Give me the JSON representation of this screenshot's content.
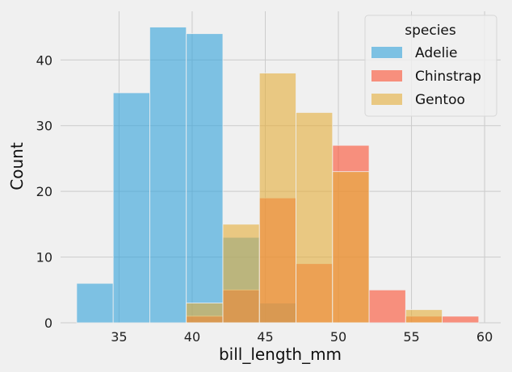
{
  "chart_data": {
    "type": "bar",
    "xlabel": "bill_length_mm",
    "ylabel": "Count",
    "xlim": [
      31.0,
      61.1
    ],
    "ylim": [
      0,
      47.4
    ],
    "x_ticks": [
      35,
      40,
      45,
      50,
      55,
      60
    ],
    "y_ticks": [
      0,
      10,
      20,
      30,
      40
    ],
    "grid": true,
    "bins": [
      [
        32.1,
        34.6
      ],
      [
        34.6,
        37.1
      ],
      [
        37.1,
        39.6
      ],
      [
        39.6,
        42.1
      ],
      [
        42.1,
        44.6
      ],
      [
        44.6,
        47.1
      ],
      [
        47.1,
        49.6
      ],
      [
        49.6,
        52.1
      ],
      [
        52.1,
        54.6
      ],
      [
        54.6,
        57.1
      ],
      [
        57.1,
        59.6
      ]
    ],
    "legend": {
      "title": "species",
      "position": "top-right"
    },
    "series": [
      {
        "name": "Adelie",
        "color": "#30a2da",
        "values": [
          6,
          35,
          45,
          44,
          13,
          3,
          0,
          0,
          0,
          0,
          0
        ]
      },
      {
        "name": "Chinstrap",
        "color": "#fc4f30",
        "values": [
          0,
          0,
          0,
          1,
          5,
          19,
          9,
          27,
          5,
          1,
          1
        ]
      },
      {
        "name": "Gentoo",
        "color": "#e5ae38",
        "values": [
          0,
          0,
          0,
          3,
          15,
          38,
          32,
          23,
          0,
          2,
          0
        ]
      }
    ]
  }
}
